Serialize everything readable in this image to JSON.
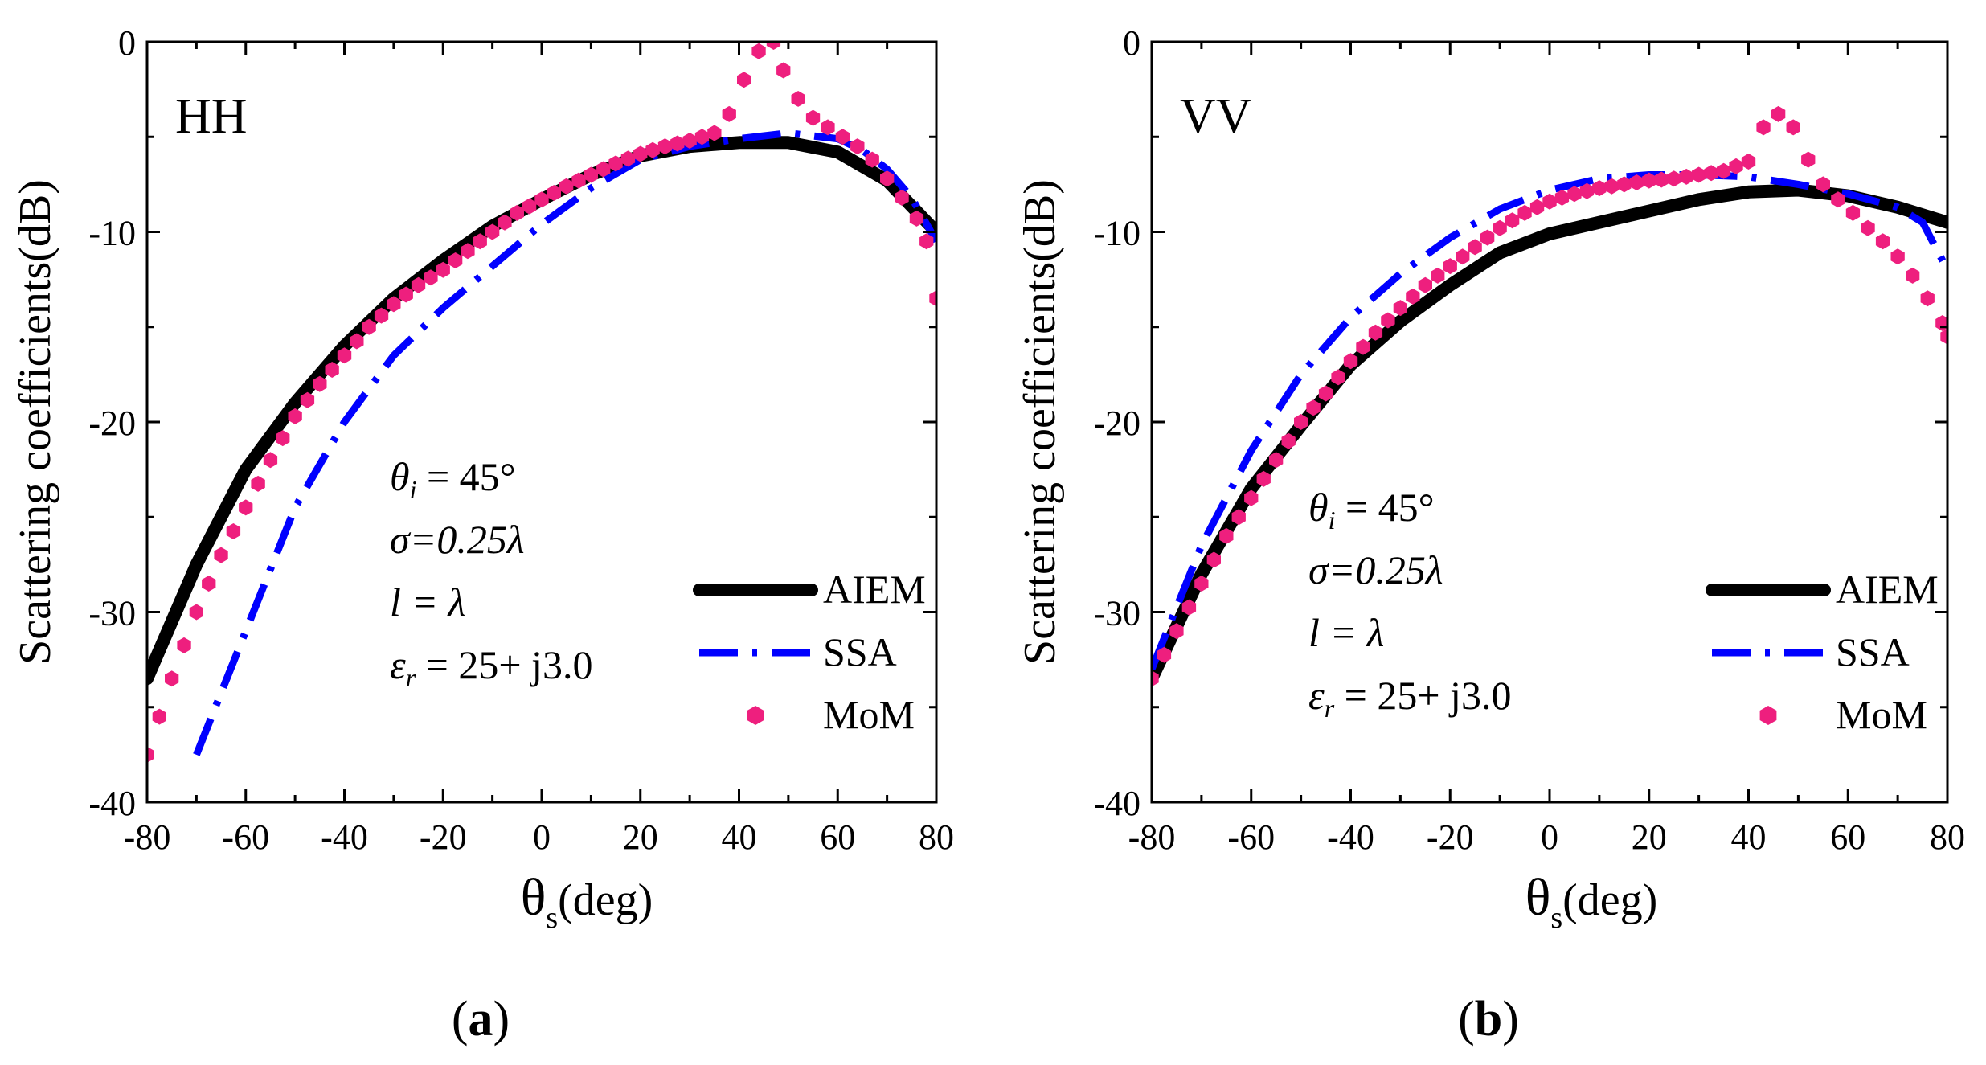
{
  "chart_data": [
    {
      "type": "line",
      "panel_label": "HH",
      "subfigure_label": "a",
      "xlabel": "θ",
      "xlabel_sub": "s",
      "xlabel_unit": "(deg)",
      "ylabel": "Scattering coefficients(dB)",
      "xlim": [
        -80,
        80
      ],
      "ylim": [
        -40,
        0
      ],
      "xticks": [
        -80,
        -60,
        -40,
        -20,
        0,
        20,
        40,
        60,
        80
      ],
      "yticks": [
        0,
        -10,
        -20,
        -30,
        -40
      ],
      "annotations": [
        "θ_i = 45°",
        "σ=0.25λ",
        "l = λ",
        "ε_r = 25+ j3.0"
      ],
      "legend": [
        "AIEM",
        "SSA",
        "MoM"
      ],
      "series": [
        {
          "name": "AIEM",
          "style": "solid",
          "color": "#000000",
          "x": [
            -80,
            -70,
            -60,
            -50,
            -40,
            -30,
            -20,
            -10,
            0,
            10,
            20,
            30,
            40,
            50,
            60,
            70,
            80
          ],
          "y": [
            -33.5,
            -27.5,
            -22.5,
            -19,
            -16,
            -13.5,
            -11.5,
            -9.7,
            -8.3,
            -7,
            -6,
            -5.5,
            -5.3,
            -5.3,
            -5.8,
            -7.3,
            -10
          ]
        },
        {
          "name": "SSA",
          "style": "dashdot",
          "color": "#0000ff",
          "x": [
            -70,
            -60,
            -50,
            -40,
            -30,
            -20,
            -10,
            0,
            10,
            20,
            30,
            40,
            50,
            60,
            65,
            70,
            75,
            80
          ],
          "y": [
            -37.5,
            -31,
            -24.5,
            -20,
            -16.5,
            -14,
            -11.8,
            -9.6,
            -7.7,
            -6.2,
            -5.5,
            -5.1,
            -4.8,
            -5.1,
            -5.7,
            -6.7,
            -8.2,
            -10.5
          ]
        },
        {
          "name": "MoM",
          "style": "markers",
          "color": "#ee1f7e",
          "x": [
            -80,
            -75,
            -70,
            -65,
            -60,
            -55,
            -50,
            -45,
            -40,
            -35,
            -30,
            -25,
            -20,
            -15,
            -10,
            -5,
            0,
            5,
            10,
            15,
            20,
            25,
            30,
            35,
            38,
            41,
            44,
            47,
            49,
            52,
            55,
            58,
            61,
            64,
            67,
            70,
            73,
            76,
            78,
            80
          ],
          "y": [
            -37.5,
            -33.5,
            -30,
            -27,
            -24.5,
            -22,
            -19.7,
            -18,
            -16.5,
            -15,
            -13.8,
            -12.8,
            -12,
            -11,
            -10,
            -9,
            -8.3,
            -7.6,
            -7,
            -6.4,
            -5.9,
            -5.5,
            -5.2,
            -4.8,
            -3.8,
            -2,
            -0.5,
            0,
            -1.5,
            -3,
            -4,
            -4.5,
            -5,
            -5.5,
            -6.2,
            -7.2,
            -8.2,
            -9.3,
            -10.5,
            -13.5
          ]
        }
      ]
    },
    {
      "type": "line",
      "panel_label": "VV",
      "subfigure_label": "b",
      "xlabel": "θ",
      "xlabel_sub": "s",
      "xlabel_unit": "(deg)",
      "ylabel": "Scattering coefficients(dB)",
      "xlim": [
        -80,
        80
      ],
      "ylim": [
        -40,
        0
      ],
      "xticks": [
        -80,
        -60,
        -40,
        -20,
        0,
        20,
        40,
        60,
        80
      ],
      "yticks": [
        0,
        -10,
        -20,
        -30,
        -40
      ],
      "annotations": [
        "θ_i = 45°",
        "σ=0.25λ",
        "l = λ",
        "ε_r = 25+ j3.0"
      ],
      "legend": [
        "AIEM",
        "SSA",
        "MoM"
      ],
      "series": [
        {
          "name": "AIEM",
          "style": "solid",
          "color": "#000000",
          "x": [
            -80,
            -70,
            -60,
            -50,
            -40,
            -30,
            -20,
            -10,
            0,
            10,
            20,
            30,
            40,
            50,
            60,
            70,
            80
          ],
          "y": [
            -33.5,
            -28,
            -23.5,
            -20.2,
            -17,
            -14.7,
            -12.8,
            -11.1,
            -10.1,
            -9.5,
            -8.9,
            -8.3,
            -7.9,
            -7.8,
            -8.1,
            -8.7,
            -9.5
          ]
        },
        {
          "name": "SSA",
          "style": "dashdot",
          "color": "#0000ff",
          "x": [
            -80,
            -70,
            -60,
            -50,
            -40,
            -30,
            -20,
            -10,
            0,
            10,
            20,
            30,
            40,
            50,
            60,
            70,
            75,
            80
          ],
          "y": [
            -33,
            -26.5,
            -21.5,
            -17.5,
            -14.5,
            -12.2,
            -10.3,
            -8.8,
            -7.8,
            -7.2,
            -7,
            -7,
            -7.1,
            -7.5,
            -8,
            -8.7,
            -9.5,
            -12
          ]
        },
        {
          "name": "MoM",
          "style": "markers",
          "color": "#ee1f7e",
          "x": [
            -80,
            -75,
            -70,
            -65,
            -60,
            -55,
            -50,
            -45,
            -40,
            -35,
            -30,
            -25,
            -20,
            -15,
            -10,
            -5,
            0,
            5,
            10,
            15,
            20,
            25,
            30,
            35,
            40,
            43,
            46,
            49,
            52,
            55,
            58,
            61,
            64,
            67,
            70,
            73,
            76,
            79,
            80
          ],
          "y": [
            -33.5,
            -31,
            -28.5,
            -26,
            -24,
            -22,
            -20,
            -18.5,
            -16.8,
            -15.3,
            -14,
            -12.8,
            -11.8,
            -10.8,
            -9.8,
            -9,
            -8.4,
            -8,
            -7.7,
            -7.5,
            -7.3,
            -7.2,
            -7,
            -6.8,
            -6.3,
            -4.5,
            -3.8,
            -4.5,
            -6.2,
            -7.5,
            -8.3,
            -9,
            -9.8,
            -10.5,
            -11.3,
            -12.3,
            -13.5,
            -14.8,
            -15.5
          ]
        }
      ]
    }
  ]
}
